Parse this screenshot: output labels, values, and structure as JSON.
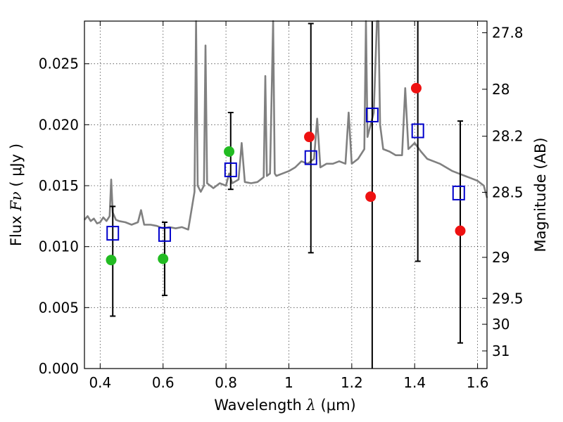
{
  "chart_data": {
    "type": "scatter",
    "title": "",
    "xlabel_prefix": "Wavelength",
    "xlabel_symbol": "λ",
    "xlabel_unit": "(μm)",
    "ylabel_prefix": "Flux",
    "ylabel_symbol": "Fν",
    "ylabel_unit": "( μJy )",
    "y2label": "Magnitude (AB)",
    "xlim": [
      0.35,
      1.63
    ],
    "ylim": [
      0.0,
      0.0285
    ],
    "grid": true,
    "x_ticks": [
      0.4,
      0.6,
      0.8,
      1.0,
      1.2,
      1.4,
      1.6
    ],
    "x_tick_labels": [
      "0.4",
      "0.6",
      "0.8",
      "1",
      "1.2",
      "1.4",
      "1.6"
    ],
    "y_ticks": [
      0.0,
      0.005,
      0.01,
      0.015,
      0.02,
      0.025
    ],
    "y_tick_labels": [
      "0.000",
      "0.005",
      "0.010",
      "0.015",
      "0.020",
      "0.025"
    ],
    "y2_ticks": [
      27.8,
      28,
      28.2,
      28.5,
      29,
      29.5,
      30,
      31
    ],
    "y2_tick_labels": [
      "27.8",
      "28",
      "28.2",
      "28.5",
      "29",
      "29.5",
      "30",
      "31"
    ],
    "colors": {
      "model": "#808080",
      "optical_detection": "#22bb22",
      "nir_detection": "#ee1111",
      "model_flux": "#0000cc",
      "errorbar": "#000000"
    },
    "series": [
      {
        "name": "model spectrum",
        "kind": "line",
        "x": [
          0.35,
          0.36,
          0.37,
          0.38,
          0.39,
          0.4,
          0.41,
          0.42,
          0.43,
          0.435,
          0.44,
          0.45,
          0.46,
          0.48,
          0.5,
          0.52,
          0.53,
          0.54,
          0.56,
          0.58,
          0.6,
          0.62,
          0.64,
          0.66,
          0.68,
          0.7,
          0.705,
          0.71,
          0.72,
          0.73,
          0.735,
          0.74,
          0.75,
          0.76,
          0.78,
          0.8,
          0.81,
          0.82,
          0.84,
          0.85,
          0.86,
          0.88,
          0.9,
          0.92,
          0.925,
          0.93,
          0.94,
          0.95,
          0.955,
          0.96,
          0.98,
          1.0,
          1.02,
          1.04,
          1.06,
          1.08,
          1.09,
          1.1,
          1.12,
          1.14,
          1.16,
          1.18,
          1.19,
          1.2,
          1.22,
          1.24,
          1.245,
          1.25,
          1.27,
          1.28,
          1.285,
          1.29,
          1.3,
          1.32,
          1.34,
          1.36,
          1.37,
          1.38,
          1.4,
          1.42,
          1.44,
          1.46,
          1.48,
          1.5,
          1.52,
          1.54,
          1.56,
          1.58,
          1.6,
          1.62,
          1.63
        ],
        "y": [
          0.0122,
          0.0125,
          0.0121,
          0.0123,
          0.0119,
          0.012,
          0.0124,
          0.0121,
          0.0125,
          0.0155,
          0.0128,
          0.0122,
          0.0121,
          0.012,
          0.0118,
          0.012,
          0.013,
          0.0118,
          0.0118,
          0.0117,
          0.0115,
          0.0116,
          0.0115,
          0.0116,
          0.0114,
          0.0145,
          0.0285,
          0.015,
          0.0145,
          0.015,
          0.0265,
          0.0152,
          0.015,
          0.0148,
          0.0152,
          0.015,
          0.016,
          0.0152,
          0.0155,
          0.0185,
          0.0153,
          0.0152,
          0.0153,
          0.0157,
          0.024,
          0.0158,
          0.016,
          0.0285,
          0.016,
          0.0158,
          0.016,
          0.0162,
          0.0165,
          0.017,
          0.0168,
          0.0172,
          0.0205,
          0.0165,
          0.0168,
          0.0168,
          0.017,
          0.0168,
          0.021,
          0.0168,
          0.0172,
          0.018,
          0.0285,
          0.019,
          0.021,
          0.0285,
          0.0285,
          0.02,
          0.018,
          0.0178,
          0.0175,
          0.0175,
          0.023,
          0.018,
          0.0185,
          0.0178,
          0.0172,
          0.017,
          0.0168,
          0.0165,
          0.0162,
          0.016,
          0.0158,
          0.0156,
          0.0154,
          0.015,
          0.014
        ]
      },
      {
        "name": "optical detections",
        "kind": "point",
        "color_key": "optical_detection",
        "x": [
          0.435,
          0.6,
          0.81
        ],
        "y": [
          0.0089,
          0.009,
          0.0178
        ]
      },
      {
        "name": "NIR detections",
        "kind": "point",
        "color_key": "nir_detection",
        "x": [
          1.065,
          1.26,
          1.405,
          1.545
        ],
        "y": [
          0.019,
          0.0141,
          0.023,
          0.0113
        ]
      },
      {
        "name": "model band fluxes",
        "kind": "square",
        "color_key": "model_flux",
        "x": [
          0.44,
          0.605,
          0.815,
          1.07,
          1.265,
          1.41,
          1.54
        ],
        "y": [
          0.0111,
          0.011,
          0.0163,
          0.0173,
          0.0208,
          0.0195,
          0.0144
        ]
      },
      {
        "name": "error bars",
        "kind": "errorbar",
        "x": [
          0.44,
          0.605,
          0.815,
          1.07,
          1.265,
          1.41,
          1.545
        ],
        "lower": [
          0.0043,
          0.006,
          0.0147,
          0.0095,
          0.0,
          0.0088,
          0.0021
        ],
        "upper": [
          0.0133,
          0.012,
          0.021,
          0.0283,
          0.0285,
          0.0285,
          0.0203
        ]
      }
    ]
  }
}
